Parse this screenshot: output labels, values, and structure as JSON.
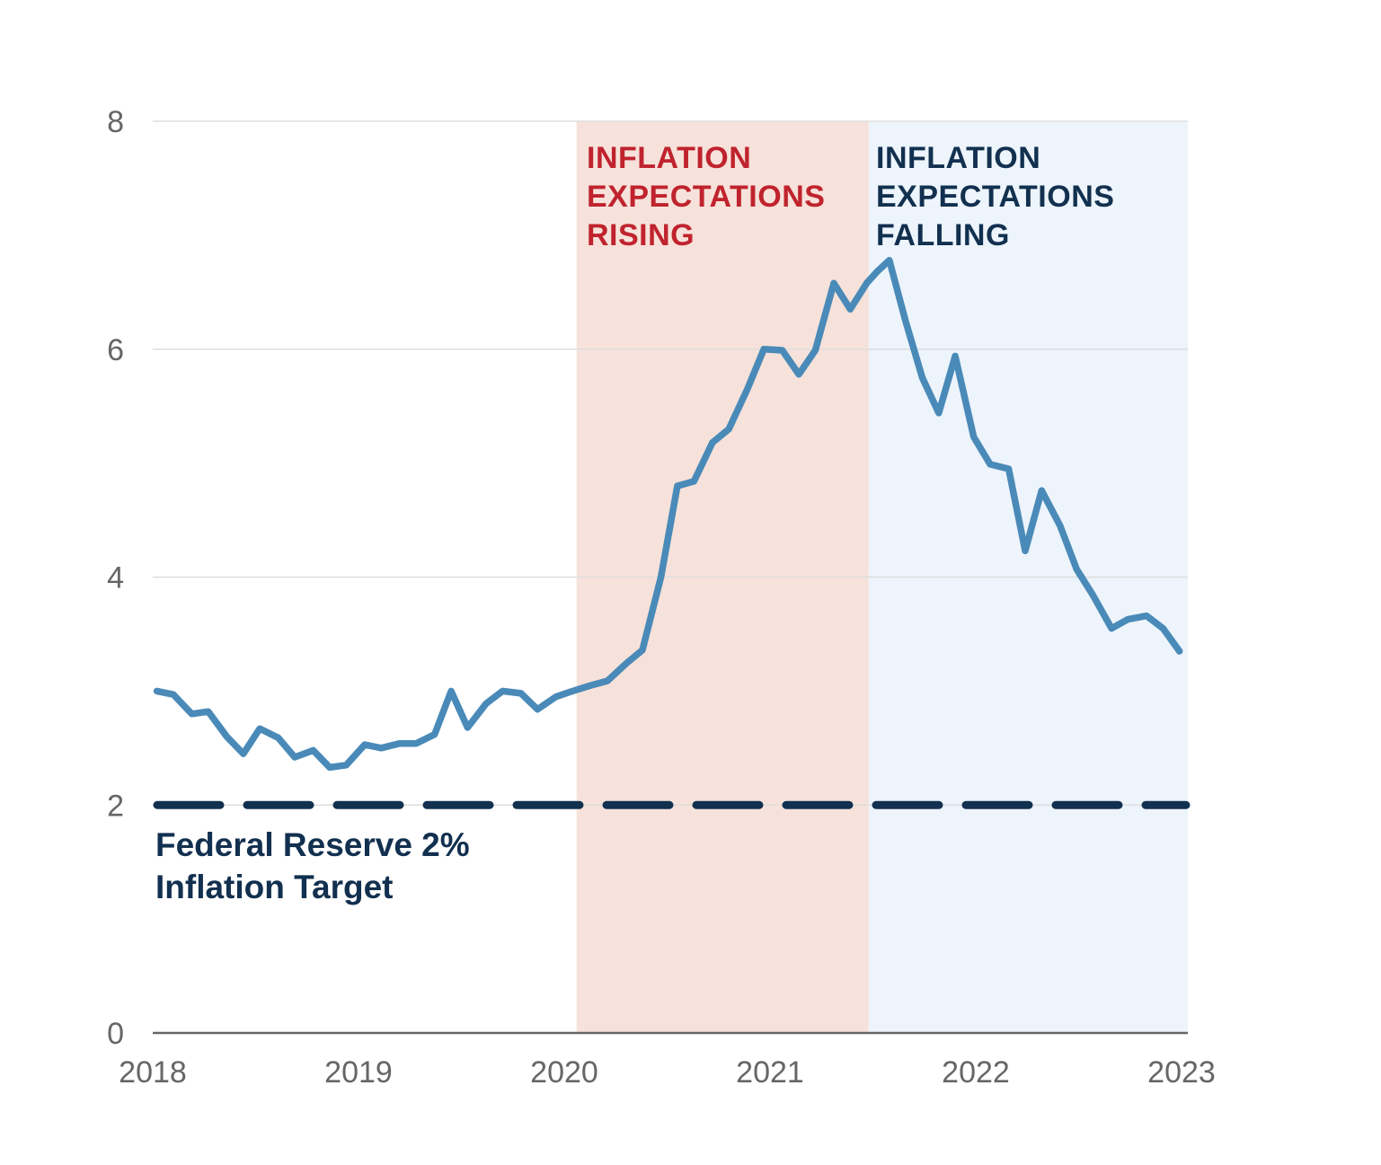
{
  "chart_data": {
    "type": "line",
    "title": "",
    "xlabel": "",
    "ylabel": "",
    "xlim": [
      2018,
      2023
    ],
    "ylim": [
      0,
      8
    ],
    "y_ticks": [
      "0",
      "2",
      "4",
      "6",
      "8"
    ],
    "x_ticks": [
      "2018",
      "2019",
      "2020",
      "2021",
      "2022",
      "2023"
    ],
    "grid": true,
    "colors": {
      "series": "#4a8ab8",
      "target": "#12304f",
      "rising_band": "#f6e2da",
      "falling_band": "#edf4fb",
      "rising_text": "#c0232e",
      "falling_text": "#12304f"
    },
    "regions": [
      {
        "name": "rising",
        "x_start": 2020.06,
        "x_end": 2021.48,
        "label_lines": [
          "INFLATION",
          "EXPECTATIONS",
          "RISING"
        ]
      },
      {
        "name": "falling",
        "x_start": 2021.48,
        "x_end": 2023.04,
        "label_lines": [
          "INFLATION",
          "EXPECTATIONS",
          "FALLING"
        ]
      }
    ],
    "target": {
      "value": 2,
      "label_lines": [
        "Federal Reserve 2%",
        "Inflation Target"
      ]
    },
    "series": [
      {
        "name": "Inflation expectations",
        "x": [
          2018.02,
          2018.1,
          2018.19,
          2018.27,
          2018.36,
          2018.44,
          2018.52,
          2018.61,
          2018.69,
          2018.78,
          2018.86,
          2018.94,
          2019.03,
          2019.11,
          2019.2,
          2019.28,
          2019.37,
          2019.45,
          2019.53,
          2019.62,
          2019.7,
          2019.79,
          2019.87,
          2019.96,
          2020.04,
          2020.13,
          2020.21,
          2020.3,
          2020.38,
          2020.47,
          2020.55,
          2020.63,
          2020.72,
          2020.8,
          2020.89,
          2020.97,
          2021.06,
          2021.14,
          2021.22,
          2021.31,
          2021.39,
          2021.47,
          2021.52,
          2021.58,
          2021.66,
          2021.74,
          2021.82,
          2021.9,
          2021.99,
          2022.07,
          2022.16,
          2022.24,
          2022.32,
          2022.41,
          2022.49,
          2022.57,
          2022.66,
          2022.74,
          2022.83,
          2022.91,
          2022.99
        ],
        "values": [
          3.0,
          2.97,
          2.8,
          2.82,
          2.6,
          2.45,
          2.67,
          2.59,
          2.42,
          2.48,
          2.33,
          2.35,
          2.53,
          2.5,
          2.54,
          2.54,
          2.62,
          3.0,
          2.68,
          2.89,
          3.0,
          2.98,
          2.84,
          2.95,
          3.0,
          3.05,
          3.09,
          3.24,
          3.36,
          4.0,
          4.8,
          4.84,
          5.18,
          5.3,
          5.65,
          6.0,
          5.99,
          5.78,
          5.99,
          6.58,
          6.35,
          6.58,
          6.68,
          6.78,
          6.24,
          5.75,
          5.44,
          5.94,
          5.23,
          4.99,
          4.95,
          4.23,
          4.76,
          4.45,
          4.07,
          3.84,
          3.55,
          3.63,
          3.66,
          3.55,
          3.35
        ]
      }
    ]
  }
}
